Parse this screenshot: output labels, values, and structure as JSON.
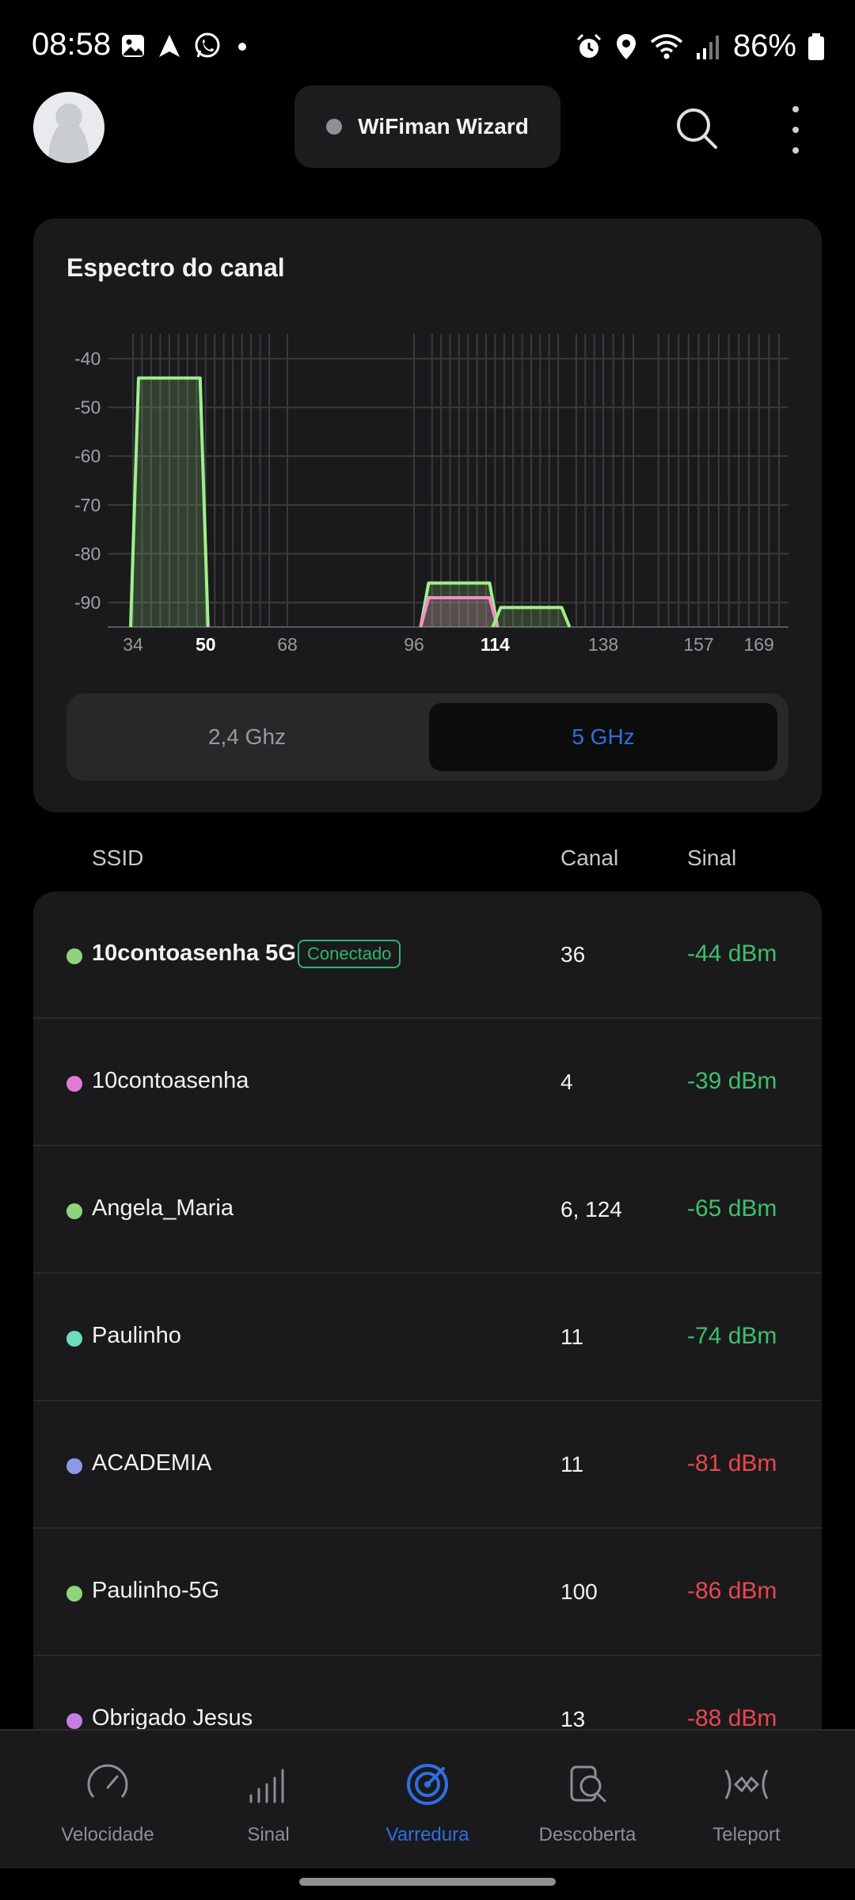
{
  "status": {
    "time": "08:58",
    "battery": "86%",
    "left_icons": [
      "gallery-icon",
      "navigation-icon",
      "whatsapp-icon",
      "dot-icon"
    ],
    "right_icons": [
      "alarm-icon",
      "location-icon",
      "wifi-icon",
      "cellular-icon",
      "battery-icon"
    ]
  },
  "header": {
    "wizard_label": "WiFiman Wizard"
  },
  "spectrum": {
    "title": "Espectro do canal",
    "band_24_label": "2,4 Ghz",
    "band_5_label": "5 GHz",
    "selected_band": "5 GHz"
  },
  "chart_data": {
    "type": "area",
    "title": "Espectro do canal",
    "y_ticks": [
      "-40",
      "-50",
      "-60",
      "-70",
      "-80",
      "-90"
    ],
    "ylim": [
      -95,
      -35
    ],
    "x_ticks": [
      {
        "label": "34",
        "value": 34,
        "bold": false
      },
      {
        "label": "50",
        "value": 50,
        "bold": true
      },
      {
        "label": "68",
        "value": 68,
        "bold": false
      },
      {
        "label": "96",
        "value": 96,
        "bold": false
      },
      {
        "label": "114",
        "value": 114,
        "bold": true
      },
      {
        "label": "138",
        "value": 138,
        "bold": false
      },
      {
        "label": "157",
        "value": 157,
        "bold": false
      },
      {
        "label": "169",
        "value": 169,
        "bold": false
      }
    ],
    "channel_gridlines": [
      34,
      36,
      38,
      40,
      42,
      44,
      46,
      48,
      50,
      52,
      54,
      56,
      58,
      60,
      62,
      64,
      68,
      96,
      100,
      102,
      104,
      106,
      108,
      110,
      112,
      114,
      116,
      118,
      120,
      122,
      124,
      126,
      128,
      132,
      134,
      136,
      138,
      140,
      142,
      144,
      149,
      151,
      153,
      155,
      157,
      159,
      161,
      163,
      165,
      167,
      169,
      171,
      173
    ],
    "series": [
      {
        "color": "#9ef08a",
        "start": 34,
        "end": 50,
        "level": -44
      },
      {
        "color": "#9ef08a",
        "start": 98,
        "end": 114,
        "level": -86
      },
      {
        "color": "#f58ec8",
        "start": 98,
        "end": 114,
        "level": -89
      },
      {
        "color": "#9ef08a",
        "start": 114,
        "end": 130,
        "level": -91
      }
    ]
  },
  "table": {
    "col_ssid": "SSID",
    "col_canal": "Canal",
    "col_sinal": "Sinal"
  },
  "networks": [
    {
      "ssid": "10contoasenha 5G",
      "badge": "Conectado",
      "canal": "36",
      "signal": "-44 dBm",
      "dot_color": "#8fd47c",
      "quality": "good",
      "bold": true
    },
    {
      "ssid": "10contoasenha",
      "badge": "",
      "canal": "4",
      "signal": "-39 dBm",
      "dot_color": "#e27ad6",
      "quality": "good",
      "bold": false
    },
    {
      "ssid": "Angela_Maria",
      "badge": "",
      "canal": "6, 124",
      "signal": "-65 dBm",
      "dot_color": "#8fd47c",
      "quality": "good",
      "bold": false
    },
    {
      "ssid": "Paulinho",
      "badge": "",
      "canal": "11",
      "signal": "-74 dBm",
      "dot_color": "#6fdcc0",
      "quality": "good",
      "bold": false
    },
    {
      "ssid": "ACADEMIA",
      "badge": "",
      "canal": "11",
      "signal": "-81 dBm",
      "dot_color": "#8a9ae3",
      "quality": "bad",
      "bold": false
    },
    {
      "ssid": "Paulinho-5G",
      "badge": "",
      "canal": "100",
      "signal": "-86 dBm",
      "dot_color": "#8fd47c",
      "quality": "bad",
      "bold": false
    },
    {
      "ssid": "Obrigado Jesus",
      "badge": "",
      "canal": "13",
      "signal": "-88 dBm",
      "dot_color": "#c77ee0",
      "quality": "bad",
      "bold": false
    }
  ],
  "nav": [
    {
      "label": "Velocidade",
      "icon": "speedometer-icon",
      "active": false
    },
    {
      "label": "Sinal",
      "icon": "signal-bars-icon",
      "active": false
    },
    {
      "label": "Varredura",
      "icon": "radar-icon",
      "active": true
    },
    {
      "label": "Descoberta",
      "icon": "discovery-icon",
      "active": false
    },
    {
      "label": "Teleport",
      "icon": "teleport-icon",
      "active": false
    }
  ]
}
